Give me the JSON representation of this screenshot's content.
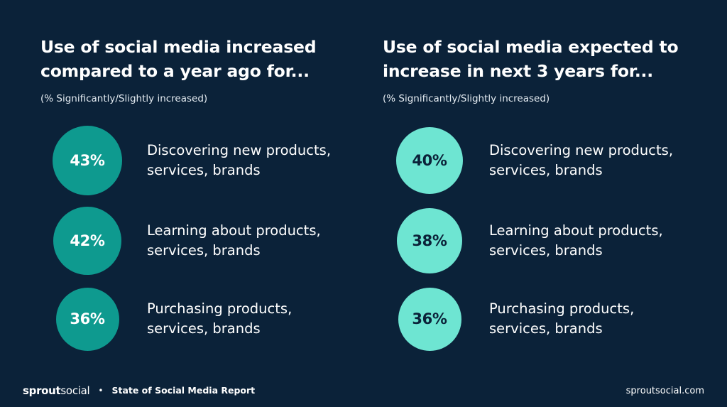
{
  "chart_data": [
    {
      "type": "bubble-list",
      "title_lines": [
        "Use of social media increased",
        "compared to a year ago for..."
      ],
      "subtitle": "(% Significantly/Slightly increased)",
      "color": "#0e9a8f",
      "items": [
        {
          "value": 43,
          "display": "43%",
          "label_lines": [
            "Discovering new products,",
            "services, brands"
          ]
        },
        {
          "value": 42,
          "display": "42%",
          "label_lines": [
            "Learning about products,",
            "services, brands"
          ]
        },
        {
          "value": 36,
          "display": "36%",
          "label_lines": [
            "Purchasing products,",
            "services, brands"
          ]
        }
      ]
    },
    {
      "type": "bubble-list",
      "title_lines": [
        "Use of social media expected to",
        "increase in next 3 years for..."
      ],
      "subtitle": "(% Significantly/Slightly increased)",
      "color": "#6ee5d2",
      "items": [
        {
          "value": 40,
          "display": "40%",
          "label_lines": [
            "Discovering new products,",
            "services, brands"
          ]
        },
        {
          "value": 38,
          "display": "38%",
          "label_lines": [
            "Learning about products,",
            "services, brands"
          ]
        },
        {
          "value": 36,
          "display": "36%",
          "label_lines": [
            "Purchasing products,",
            "services, brands"
          ]
        }
      ]
    }
  ],
  "footer": {
    "brand_bold": "sprout",
    "brand_light": "social",
    "separator": "•",
    "report": "State of Social Media Report",
    "site": "sproutsocial.com"
  },
  "colors": {
    "background": "#0b2239",
    "accent_dark": "#0e9a8f",
    "accent_light": "#6ee5d2"
  }
}
